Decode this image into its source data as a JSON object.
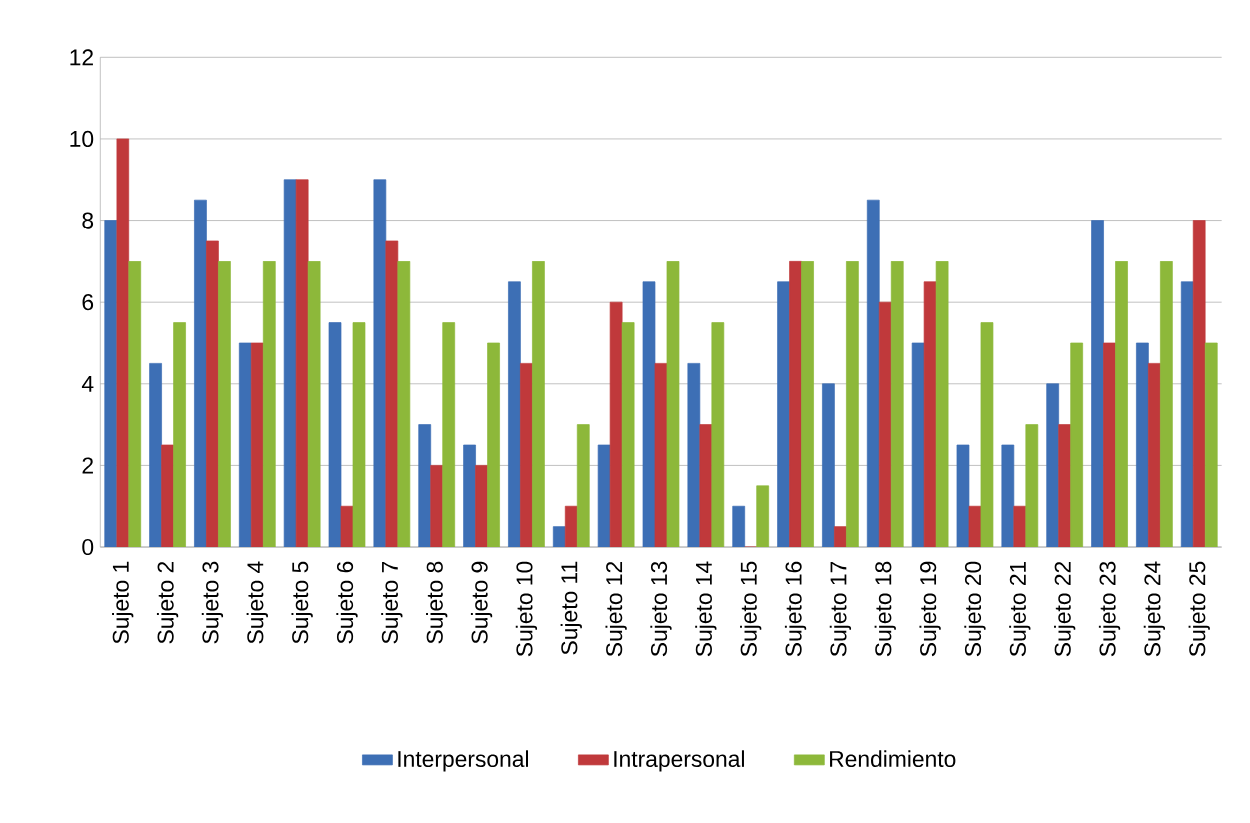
{
  "chart_data": {
    "type": "bar",
    "categories": [
      "Sujeto 1",
      "Sujeto 2",
      "Sujeto 3",
      "Sujeto 4",
      "Sujeto 5",
      "Sujeto 6",
      "Sujeto 7",
      "Sujeto 8",
      "Sujeto 9",
      "Sujeto 10",
      "Sujeto 11",
      "Sujeto 12",
      "Sujeto 13",
      "Sujeto 14",
      "Sujeto 15",
      "Sujeto 16",
      "Sujeto 17",
      "Sujeto 18",
      "Sujeto 19",
      "Sujeto 20",
      "Sujeto 21",
      "Sujeto 22",
      "Sujeto 23",
      "Sujeto 24",
      "Sujeto 25"
    ],
    "series": [
      {
        "name": "Interpersonal",
        "color": "#3d6fb5",
        "values": [
          8,
          4.5,
          8.5,
          5,
          9,
          5.5,
          9,
          3,
          2.5,
          6.5,
          0.5,
          2.5,
          6.5,
          4.5,
          1,
          6.5,
          4,
          8.5,
          5,
          2.5,
          2.5,
          4,
          8,
          5,
          6.5
        ]
      },
      {
        "name": "Intrapersonal",
        "color": "#c0393b",
        "values": [
          10,
          2.5,
          7.5,
          5,
          9,
          1,
          7.5,
          2,
          2,
          4.5,
          1,
          6,
          4.5,
          3,
          0,
          7,
          0.5,
          6,
          6.5,
          1,
          1,
          3,
          5,
          4.5,
          8
        ]
      },
      {
        "name": "Rendimiento",
        "color": "#8db83a",
        "values": [
          7,
          5.5,
          7,
          7,
          7,
          5.5,
          7,
          5.5,
          5,
          7,
          3,
          5.5,
          7,
          5.5,
          1.5,
          7,
          7,
          7,
          7,
          5.5,
          3,
          5,
          7,
          7,
          5
        ]
      }
    ],
    "ylim": [
      0,
      12
    ],
    "yticks": [
      0,
      2,
      4,
      6,
      8,
      10,
      12
    ],
    "grid": "y",
    "legend": "bottom"
  }
}
